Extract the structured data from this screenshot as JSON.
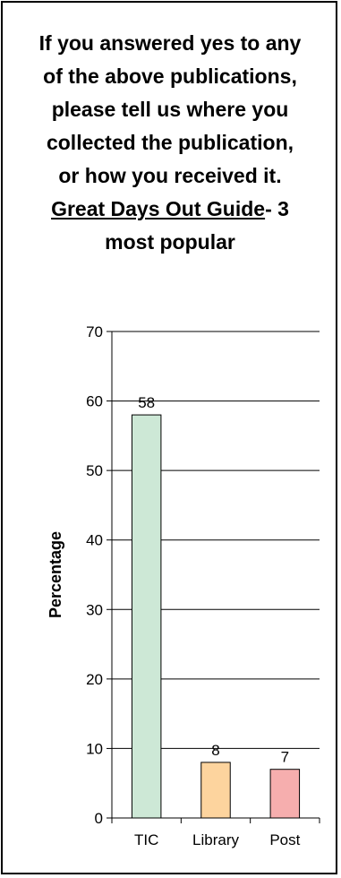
{
  "title_parts": {
    "lead": "If you answered yes to any of the above publications, please tell us where you collected the publication, or how you received it.",
    "underlined": "Great Days Out Guide",
    "tail": "- 3 most popular"
  },
  "chart_data": {
    "type": "bar",
    "title": "If you answered yes to any of the above publications, please tell us where you collected the publication, or how you received it. Great Days Out Guide- 3 most popular",
    "xlabel": "",
    "ylabel": "Percentage",
    "categories": [
      "TIC",
      "Library",
      "Post"
    ],
    "values": [
      58,
      8,
      7
    ],
    "data_labels": [
      "58",
      "8",
      "7"
    ],
    "ylim": [
      0,
      70
    ],
    "yticks": [
      0,
      10,
      20,
      30,
      40,
      50,
      60,
      70
    ],
    "ytick_labels": [
      "0",
      "10",
      "20",
      "30",
      "40",
      "50",
      "60",
      "70"
    ],
    "grid": true,
    "legend": "none",
    "colors": {
      "bars": [
        "#cde8d6",
        "#fdd49e",
        "#f6aeae"
      ],
      "bar_stroke": "#000000",
      "grid": "#000000",
      "axis": "#000000"
    }
  }
}
